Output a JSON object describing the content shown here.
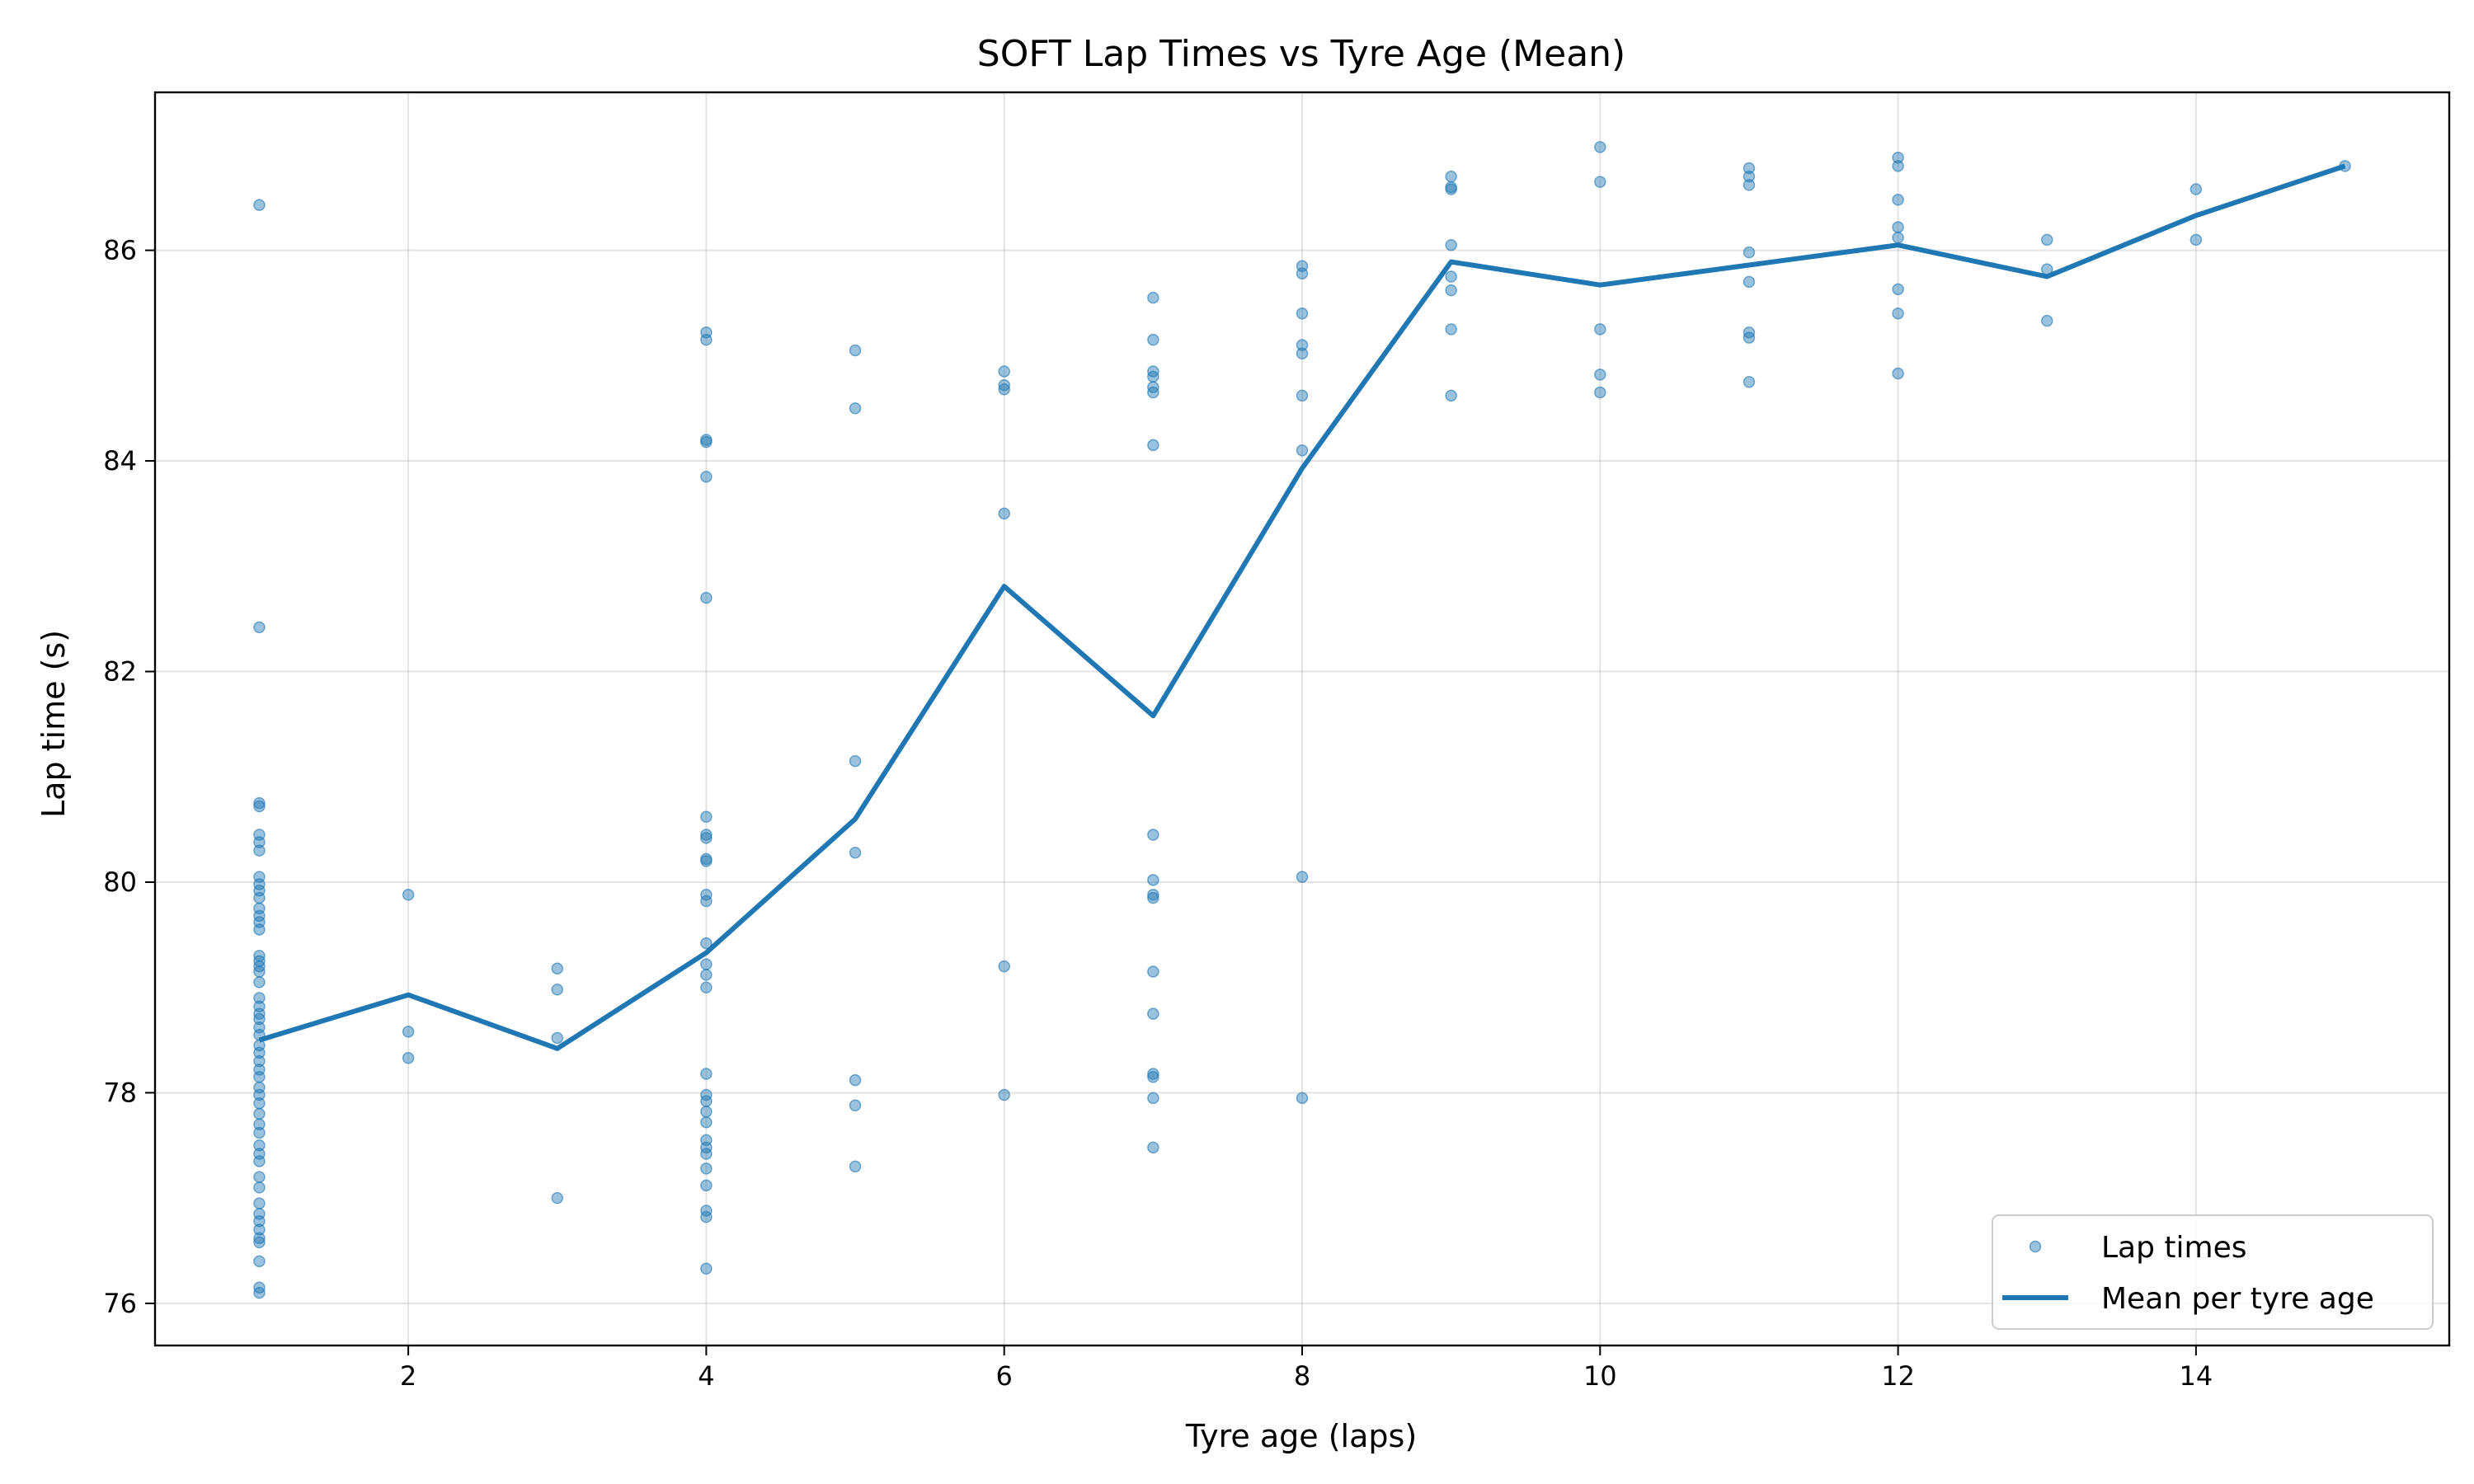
{
  "chart_data": {
    "type": "scatter",
    "title": "SOFT Lap Times vs Tyre Age (Mean)",
    "xlabel": "Tyre age (laps)",
    "ylabel": "Lap time (s)",
    "xlim": [
      0.3,
      15.7
    ],
    "ylim": [
      75.6,
      87.5
    ],
    "x_ticks": [
      2,
      4,
      6,
      8,
      10,
      12,
      14
    ],
    "y_ticks": [
      76,
      78,
      80,
      82,
      84,
      86
    ],
    "grid": true,
    "legend_position": "bottom-right",
    "colors": {
      "series": "#1f77b4"
    },
    "series": [
      {
        "name": "Lap times",
        "kind": "scatter",
        "points": [
          [
            1,
            86.43
          ],
          [
            1,
            82.42
          ],
          [
            1,
            80.75
          ],
          [
            1,
            80.72
          ],
          [
            1,
            80.45
          ],
          [
            1,
            80.38
          ],
          [
            1,
            80.3
          ],
          [
            1,
            80.05
          ],
          [
            1,
            79.98
          ],
          [
            1,
            79.92
          ],
          [
            1,
            79.85
          ],
          [
            1,
            79.75
          ],
          [
            1,
            79.68
          ],
          [
            1,
            79.62
          ],
          [
            1,
            79.55
          ],
          [
            1,
            79.3
          ],
          [
            1,
            79.25
          ],
          [
            1,
            79.2
          ],
          [
            1,
            79.15
          ],
          [
            1,
            79.05
          ],
          [
            1,
            78.9
          ],
          [
            1,
            78.82
          ],
          [
            1,
            78.75
          ],
          [
            1,
            78.7
          ],
          [
            1,
            78.62
          ],
          [
            1,
            78.55
          ],
          [
            1,
            78.45
          ],
          [
            1,
            78.38
          ],
          [
            1,
            78.3
          ],
          [
            1,
            78.22
          ],
          [
            1,
            78.15
          ],
          [
            1,
            78.05
          ],
          [
            1,
            77.98
          ],
          [
            1,
            77.9
          ],
          [
            1,
            77.8
          ],
          [
            1,
            77.7
          ],
          [
            1,
            77.62
          ],
          [
            1,
            77.5
          ],
          [
            1,
            77.42
          ],
          [
            1,
            77.35
          ],
          [
            1,
            77.2
          ],
          [
            1,
            77.1
          ],
          [
            1,
            76.95
          ],
          [
            1,
            76.85
          ],
          [
            1,
            76.78
          ],
          [
            1,
            76.7
          ],
          [
            1,
            76.62
          ],
          [
            1,
            76.58
          ],
          [
            1,
            76.4
          ],
          [
            1,
            76.15
          ],
          [
            1,
            76.1
          ],
          [
            2,
            79.88
          ],
          [
            2,
            78.58
          ],
          [
            2,
            78.33
          ],
          [
            3,
            79.18
          ],
          [
            3,
            78.98
          ],
          [
            3,
            78.52
          ],
          [
            3,
            77.0
          ],
          [
            4,
            85.22
          ],
          [
            4,
            85.15
          ],
          [
            4,
            84.2
          ],
          [
            4,
            84.18
          ],
          [
            4,
            83.85
          ],
          [
            4,
            82.7
          ],
          [
            4,
            80.62
          ],
          [
            4,
            80.45
          ],
          [
            4,
            80.42
          ],
          [
            4,
            80.22
          ],
          [
            4,
            80.2
          ],
          [
            4,
            79.88
          ],
          [
            4,
            79.82
          ],
          [
            4,
            79.42
          ],
          [
            4,
            79.22
          ],
          [
            4,
            79.12
          ],
          [
            4,
            79.0
          ],
          [
            4,
            78.18
          ],
          [
            4,
            77.98
          ],
          [
            4,
            77.92
          ],
          [
            4,
            77.82
          ],
          [
            4,
            77.72
          ],
          [
            4,
            77.55
          ],
          [
            4,
            77.48
          ],
          [
            4,
            77.42
          ],
          [
            4,
            77.28
          ],
          [
            4,
            77.12
          ],
          [
            4,
            76.88
          ],
          [
            4,
            76.82
          ],
          [
            4,
            76.33
          ],
          [
            5,
            85.05
          ],
          [
            5,
            84.5
          ],
          [
            5,
            81.15
          ],
          [
            5,
            80.28
          ],
          [
            5,
            78.12
          ],
          [
            5,
            77.88
          ],
          [
            5,
            77.3
          ],
          [
            6,
            84.85
          ],
          [
            6,
            84.72
          ],
          [
            6,
            84.68
          ],
          [
            6,
            83.5
          ],
          [
            6,
            79.2
          ],
          [
            6,
            77.98
          ],
          [
            7,
            85.55
          ],
          [
            7,
            85.15
          ],
          [
            7,
            84.85
          ],
          [
            7,
            84.8
          ],
          [
            7,
            84.7
          ],
          [
            7,
            84.65
          ],
          [
            7,
            84.15
          ],
          [
            7,
            80.45
          ],
          [
            7,
            80.02
          ],
          [
            7,
            79.88
          ],
          [
            7,
            79.85
          ],
          [
            7,
            79.15
          ],
          [
            7,
            78.75
          ],
          [
            7,
            78.18
          ],
          [
            7,
            78.15
          ],
          [
            7,
            77.95
          ],
          [
            7,
            77.48
          ],
          [
            8,
            85.85
          ],
          [
            8,
            85.78
          ],
          [
            8,
            85.4
          ],
          [
            8,
            85.1
          ],
          [
            8,
            85.02
          ],
          [
            8,
            84.62
          ],
          [
            8,
            84.1
          ],
          [
            8,
            80.05
          ],
          [
            8,
            77.95
          ],
          [
            9,
            86.7
          ],
          [
            9,
            86.6
          ],
          [
            9,
            86.58
          ],
          [
            9,
            86.05
          ],
          [
            9,
            85.75
          ],
          [
            9,
            85.62
          ],
          [
            9,
            85.25
          ],
          [
            9,
            84.62
          ],
          [
            10,
            86.98
          ],
          [
            10,
            86.65
          ],
          [
            10,
            85.25
          ],
          [
            10,
            84.82
          ],
          [
            10,
            84.65
          ],
          [
            11,
            86.78
          ],
          [
            11,
            86.7
          ],
          [
            11,
            86.62
          ],
          [
            11,
            85.98
          ],
          [
            11,
            85.7
          ],
          [
            11,
            85.22
          ],
          [
            11,
            85.17
          ],
          [
            11,
            84.75
          ],
          [
            12,
            86.88
          ],
          [
            12,
            86.8
          ],
          [
            12,
            86.48
          ],
          [
            12,
            86.22
          ],
          [
            12,
            86.12
          ],
          [
            12,
            85.63
          ],
          [
            12,
            85.4
          ],
          [
            12,
            84.83
          ],
          [
            13,
            86.1
          ],
          [
            13,
            85.82
          ],
          [
            13,
            85.33
          ],
          [
            14,
            86.58
          ],
          [
            14,
            86.1
          ],
          [
            15,
            86.8
          ]
        ]
      },
      {
        "name": "Mean per tyre age",
        "kind": "line",
        "x": [
          1,
          2,
          3,
          4,
          5,
          6,
          7,
          8,
          9,
          10,
          11,
          12,
          13,
          14,
          15
        ],
        "y": [
          78.5,
          78.93,
          78.42,
          79.33,
          80.6,
          82.81,
          81.58,
          83.93,
          85.89,
          85.67,
          85.86,
          86.05,
          85.75,
          86.33,
          86.8
        ]
      }
    ]
  }
}
